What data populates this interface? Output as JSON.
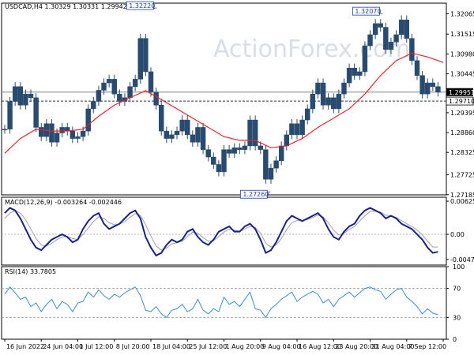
{
  "title": "USDCAD,H4  1.30329 1.30331 1.29942 1.29951",
  "watermark": "ActionForex.com",
  "chart_data": [
    {
      "type": "candlestick",
      "symbol": "USDCAD",
      "timeframe": "H4",
      "ohlc_header": {
        "open": 1.30329,
        "high": 1.30331,
        "low": 1.29942,
        "close": 1.29951
      },
      "ylim": [
        1.2718,
        1.3235
      ],
      "y_ticks": [
        1.32065,
        1.31515,
        1.3098,
        1.30445,
        1.29395,
        1.2886,
        1.28325,
        1.27725,
        1.27185
      ],
      "y_tick_labels": [
        "1.32065",
        "1.31515",
        "1.30980",
        "1.30445",
        "1.29395",
        "1.28860",
        "1.28325",
        "1.27725",
        "1.27185"
      ],
      "price_labels": [
        {
          "label": "1.29951",
          "value": 1.29951,
          "style": "current"
        },
        {
          "label": "1.29710",
          "value": 1.2971,
          "style": "level"
        }
      ],
      "horizontal_lines": [
        {
          "value": 1.29951,
          "style": "solid",
          "color": "#7f7f7f"
        },
        {
          "value": 1.2971,
          "style": "dashed",
          "color": "#303030"
        }
      ],
      "annotations": [
        {
          "label": "1.32220",
          "value": 1.3222,
          "x": 28.5,
          "side": "left"
        },
        {
          "label": "1.32070",
          "value": 1.3207,
          "x": 71.8,
          "side": "left"
        },
        {
          "label": "1.27260",
          "value": 1.2726,
          "x": 50.3,
          "side": "left"
        }
      ],
      "x_ticks": [
        0,
        7,
        14,
        21,
        28,
        35,
        42,
        49,
        56,
        63,
        70,
        77,
        84
      ],
      "x_tick_labels": [
        "16 Jun 2022",
        "24 Jun 04:00",
        "1 Jul 12:00",
        "8 Jul 20:00",
        "18 Jul 04:00",
        "25 Jul 12:00",
        "1 Aug 20:00",
        "9 Aug 04:00",
        "16 Aug 12:00",
        "23 Aug 20:00",
        "31 Aug 04:00",
        "7 Sep 12:00",
        ""
      ],
      "x_domain": [
        -0.6,
        84.6
      ],
      "close_path": [
        [
          0,
          1.2895
        ],
        [
          1,
          1.297
        ],
        [
          2,
          1.301
        ],
        [
          3,
          1.296
        ],
        [
          4,
          1.299
        ],
        [
          5,
          1.298
        ],
        [
          6,
          1.29
        ],
        [
          7,
          1.2875
        ],
        [
          8,
          1.291
        ],
        [
          9,
          1.286
        ],
        [
          10,
          1.2885
        ],
        [
          11,
          1.29
        ],
        [
          12,
          1.289
        ],
        [
          13,
          1.287
        ],
        [
          14,
          1.2875
        ],
        [
          15,
          1.289
        ],
        [
          16,
          1.295
        ],
        [
          17,
          1.297
        ],
        [
          18,
          1.3
        ],
        [
          19,
          1.302
        ],
        [
          20,
          1.303
        ],
        [
          21,
          1.299
        ],
        [
          22,
          1.297
        ],
        [
          23,
          1.298
        ],
        [
          24,
          1.301
        ],
        [
          25,
          1.303
        ],
        [
          26,
          1.314
        ],
        [
          27,
          1.305
        ],
        [
          28,
          1.2995
        ],
        [
          29,
          1.296
        ],
        [
          30,
          1.289
        ],
        [
          31,
          1.287
        ],
        [
          32,
          1.288
        ],
        [
          33,
          1.289
        ],
        [
          34,
          1.292
        ],
        [
          35,
          1.288
        ],
        [
          36,
          1.286
        ],
        [
          37,
          1.29
        ],
        [
          38,
          1.284
        ],
        [
          39,
          1.282
        ],
        [
          40,
          1.28
        ],
        [
          41,
          1.278
        ],
        [
          42,
          1.284
        ],
        [
          43,
          1.283
        ],
        [
          44,
          1.2845
        ],
        [
          45,
          1.284
        ],
        [
          46,
          1.285
        ],
        [
          47,
          1.292
        ],
        [
          48,
          1.285
        ],
        [
          49,
          1.284
        ],
        [
          50,
          1.276
        ],
        [
          51,
          1.279
        ],
        [
          52,
          1.281
        ],
        [
          53,
          1.285
        ],
        [
          54,
          1.288
        ],
        [
          55,
          1.291
        ],
        [
          56,
          1.288
        ],
        [
          57,
          1.292
        ],
        [
          58,
          1.295
        ],
        [
          59,
          1.299
        ],
        [
          60,
          1.302
        ],
        [
          61,
          1.296
        ],
        [
          62,
          1.298
        ],
        [
          63,
          1.295
        ],
        [
          64,
          1.299
        ],
        [
          65,
          1.302
        ],
        [
          66,
          1.306
        ],
        [
          67,
          1.304
        ],
        [
          68,
          1.305
        ],
        [
          69,
          1.312
        ],
        [
          70,
          1.315
        ],
        [
          71,
          1.318
        ],
        [
          72,
          1.317
        ],
        [
          73,
          1.311
        ],
        [
          74,
          1.313
        ],
        [
          75,
          1.315
        ],
        [
          76,
          1.319
        ],
        [
          77,
          1.314
        ],
        [
          78,
          1.308
        ],
        [
          79,
          1.304
        ],
        [
          80,
          1.299
        ],
        [
          81,
          1.302
        ],
        [
          82,
          1.301
        ],
        [
          83,
          1.2995
        ]
      ],
      "moving_average": {
        "color": "#e8232b",
        "values": [
          [
            0,
            1.283
          ],
          [
            3,
            1.287
          ],
          [
            6,
            1.2895
          ],
          [
            9,
            1.289
          ],
          [
            12,
            1.289
          ],
          [
            15,
            1.2895
          ],
          [
            18,
            1.293
          ],
          [
            21,
            1.296
          ],
          [
            24,
            1.298
          ],
          [
            27,
            1.2999
          ],
          [
            30,
            1.2975
          ],
          [
            33,
            1.295
          ],
          [
            36,
            1.2925
          ],
          [
            39,
            1.29
          ],
          [
            42,
            1.2875
          ],
          [
            45,
            1.2865
          ],
          [
            48,
            1.2865
          ],
          [
            51,
            1.2845
          ],
          [
            54,
            1.285
          ],
          [
            57,
            1.287
          ],
          [
            60,
            1.29
          ],
          [
            63,
            1.2925
          ],
          [
            66,
            1.295
          ],
          [
            69,
            1.299
          ],
          [
            72,
            1.304
          ],
          [
            75,
            1.308
          ],
          [
            78,
            1.31
          ],
          [
            81,
            1.309
          ],
          [
            84,
            1.3075
          ]
        ]
      },
      "price_color": "#294b6f"
    },
    {
      "type": "line",
      "name": "MACD(12,26,9) -0.003264 -0.002446",
      "ylim": [
        -0.0058,
        0.007
      ],
      "y_ticks": [
        0.006254,
        0.0,
        -0.004736
      ],
      "y_tick_labels": [
        "0.006254",
        "0.00",
        "-0.004736"
      ],
      "zero_line": 0.0,
      "series": [
        {
          "color": "#1c1f8c",
          "x": [
            0,
            1,
            2,
            3,
            4,
            5,
            6,
            7,
            8,
            9,
            10,
            11,
            12,
            13,
            14,
            15,
            16,
            17,
            18,
            19,
            20,
            21,
            22,
            23,
            24,
            25,
            26,
            27,
            28,
            29,
            30,
            31,
            32,
            33,
            34,
            35,
            36,
            37,
            38,
            39,
            40,
            41,
            42,
            43,
            44,
            45,
            46,
            47,
            48,
            49,
            50,
            51,
            52,
            53,
            54,
            55,
            56,
            57,
            58,
            59,
            60,
            61,
            62,
            63,
            64,
            65,
            66,
            67,
            68,
            69,
            70,
            71,
            72,
            73,
            74,
            75,
            76,
            77,
            78,
            79,
            80,
            81,
            82,
            83
          ],
          "values": [
            0.004,
            0.005,
            0.0045,
            0.003,
            0.001,
            -0.001,
            -0.0025,
            -0.003,
            -0.002,
            -0.001,
            -0.0005,
            0.0,
            -0.0005,
            -0.0015,
            -0.001,
            0.001,
            0.0025,
            0.0035,
            0.004,
            0.002,
            0.001,
            0.0015,
            0.002,
            0.003,
            0.004,
            0.0045,
            0.003,
            -0.0005,
            -0.0025,
            -0.004,
            -0.0035,
            -0.002,
            -0.001,
            -0.0015,
            -0.001,
            0.0005,
            0.001,
            -0.0005,
            -0.0015,
            -0.002,
            -0.001,
            0.0005,
            0.001,
            0.0015,
            0.0005,
            0.0005,
            0.0015,
            0.002,
            0.001,
            -0.001,
            -0.0035,
            -0.003,
            -0.0015,
            0.0005,
            0.0025,
            0.0035,
            0.003,
            0.0025,
            0.003,
            0.0035,
            0.004,
            0.003,
            0.001,
            -0.0005,
            -0.001,
            0.0005,
            0.0015,
            0.002,
            0.0035,
            0.0045,
            0.005,
            0.0045,
            0.004,
            0.003,
            0.0035,
            0.003,
            0.002,
            0.0015,
            0.001,
            0.0,
            -0.001,
            -0.0025,
            -0.0035,
            -0.0033
          ]
        },
        {
          "color": "#9aa0b4",
          "x": [
            0,
            1,
            2,
            3,
            4,
            5,
            6,
            7,
            8,
            9,
            10,
            11,
            12,
            13,
            14,
            15,
            16,
            17,
            18,
            19,
            20,
            21,
            22,
            23,
            24,
            25,
            26,
            27,
            28,
            29,
            30,
            31,
            32,
            33,
            34,
            35,
            36,
            37,
            38,
            39,
            40,
            41,
            42,
            43,
            44,
            45,
            46,
            47,
            48,
            49,
            50,
            51,
            52,
            53,
            54,
            55,
            56,
            57,
            58,
            59,
            60,
            61,
            62,
            63,
            64,
            65,
            66,
            67,
            68,
            69,
            70,
            71,
            72,
            73,
            74,
            75,
            76,
            77,
            78,
            79,
            80,
            81,
            82,
            83
          ],
          "values": [
            0.003,
            0.004,
            0.0045,
            0.004,
            0.0028,
            0.001,
            -0.0008,
            -0.002,
            -0.0022,
            -0.0017,
            -0.001,
            -0.0005,
            -0.0004,
            -0.0008,
            -0.001,
            0.0,
            0.0012,
            0.0024,
            0.0033,
            0.003,
            0.0022,
            0.0018,
            0.0019,
            0.0024,
            0.0032,
            0.0039,
            0.0036,
            0.0018,
            -0.0003,
            -0.0022,
            -0.003,
            -0.0026,
            -0.0018,
            -0.0016,
            -0.0013,
            -0.0004,
            0.0004,
            0.0002,
            -0.0006,
            -0.0013,
            -0.0012,
            -0.0004,
            0.0004,
            0.001,
            0.0008,
            0.0006,
            0.001,
            0.0015,
            0.0013,
            0.0002,
            -0.0017,
            -0.0024,
            -0.002,
            -0.0008,
            0.0009,
            0.0022,
            0.0026,
            0.0026,
            0.0028,
            0.0032,
            0.0036,
            0.0033,
            0.0022,
            0.0008,
            -0.0001,
            0.0002,
            0.0009,
            0.0015,
            0.0025,
            0.0035,
            0.0043,
            0.0044,
            0.0042,
            0.0036,
            0.0035,
            0.0032,
            0.0026,
            0.002,
            0.0015,
            0.0008,
            -0.0001,
            -0.0013,
            -0.0024,
            -0.0024
          ]
        }
      ]
    },
    {
      "type": "line",
      "name": "RSI(14) 33.7805",
      "ylim": [
        0,
        100
      ],
      "y_ticks": [
        100,
        70,
        30,
        0
      ],
      "y_tick_labels": [
        "100",
        "70",
        "30",
        "0"
      ],
      "levels": [
        70,
        30
      ],
      "series": [
        {
          "color": "#3b8be0",
          "x": [
            0,
            1,
            2,
            3,
            4,
            5,
            6,
            7,
            8,
            9,
            10,
            11,
            12,
            13,
            14,
            15,
            16,
            17,
            18,
            19,
            20,
            21,
            22,
            23,
            24,
            25,
            26,
            27,
            28,
            29,
            30,
            31,
            32,
            33,
            34,
            35,
            36,
            37,
            38,
            39,
            40,
            41,
            42,
            43,
            44,
            45,
            46,
            47,
            48,
            49,
            50,
            51,
            52,
            53,
            54,
            55,
            56,
            57,
            58,
            59,
            60,
            61,
            62,
            63,
            64,
            65,
            66,
            67,
            68,
            69,
            70,
            71,
            72,
            73,
            74,
            75,
            76,
            77,
            78,
            79,
            80,
            81,
            82,
            83
          ],
          "values": [
            62,
            72,
            64,
            55,
            58,
            45,
            50,
            38,
            48,
            55,
            42,
            52,
            48,
            38,
            50,
            52,
            65,
            58,
            68,
            60,
            55,
            62,
            58,
            64,
            68,
            72,
            60,
            40,
            38,
            45,
            35,
            30,
            40,
            42,
            48,
            38,
            42,
            55,
            40,
            35,
            42,
            38,
            58,
            48,
            52,
            45,
            55,
            65,
            42,
            40,
            30,
            42,
            48,
            55,
            60,
            65,
            52,
            58,
            62,
            66,
            62,
            50,
            55,
            45,
            55,
            60,
            65,
            58,
            64,
            70,
            72,
            68,
            66,
            55,
            62,
            68,
            70,
            58,
            52,
            45,
            35,
            42,
            36,
            34
          ]
        }
      ]
    }
  ]
}
